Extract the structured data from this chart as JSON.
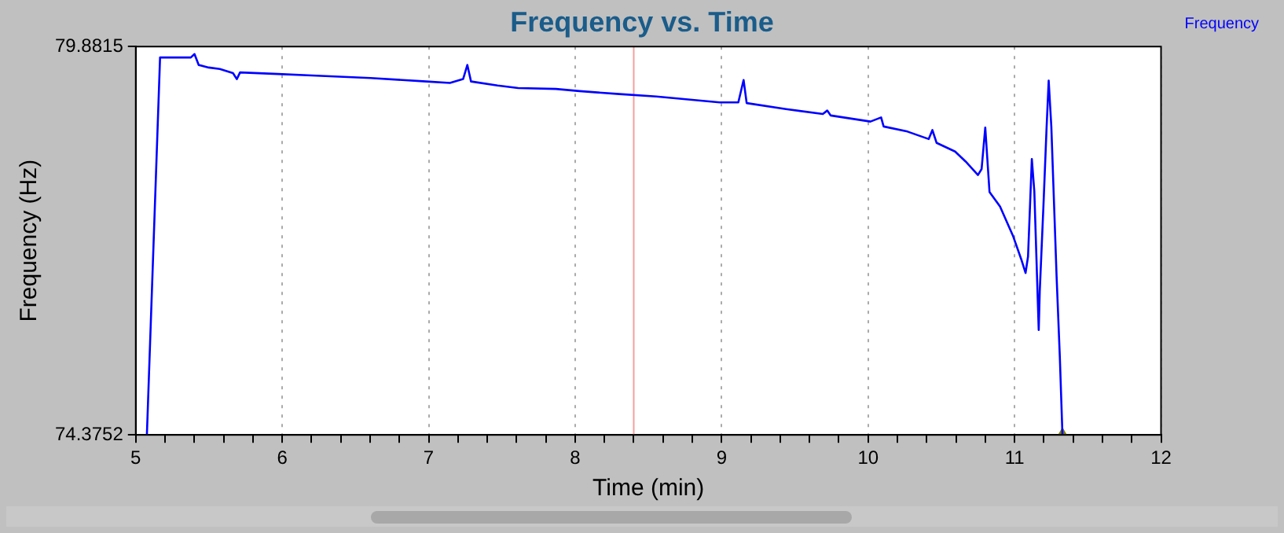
{
  "chart_data": {
    "type": "line",
    "title": "Frequency vs. Time",
    "xlabel": "Time (min)",
    "ylabel": "Frequency (Hz)",
    "xlim": [
      5,
      12
    ],
    "xticks": [
      5,
      {
        "value": 5.2,
        "label": null
      },
      {
        "value": 5.4,
        "label": null
      },
      {
        "value": 5.6,
        "label": null
      },
      {
        "value": 5.8,
        "label": null
      },
      6,
      {
        "value": 6.2,
        "label": null
      },
      {
        "value": 6.4,
        "label": null
      },
      {
        "value": 6.6,
        "label": null
      },
      {
        "value": 6.8,
        "label": null
      },
      7,
      {
        "value": 7.2,
        "label": null
      },
      {
        "value": 7.4,
        "label": null
      },
      {
        "value": 7.6,
        "label": null
      },
      {
        "value": 7.8,
        "label": null
      },
      8,
      {
        "value": 8.2,
        "label": null
      },
      {
        "value": 8.4,
        "label": null
      },
      {
        "value": 8.6,
        "label": null
      },
      {
        "value": 8.8,
        "label": null
      },
      9,
      {
        "value": 9.2,
        "label": null
      },
      {
        "value": 9.4,
        "label": null
      },
      {
        "value": 9.6,
        "label": null
      },
      {
        "value": 9.8,
        "label": null
      },
      10,
      {
        "value": 10.2,
        "label": null
      },
      {
        "value": 10.4,
        "label": null
      },
      {
        "value": 10.6,
        "label": null
      },
      {
        "value": 10.8,
        "label": null
      },
      11,
      {
        "value": 11.2,
        "label": null
      },
      {
        "value": 11.4,
        "label": null
      },
      {
        "value": 11.6,
        "label": null
      },
      {
        "value": 11.8,
        "label": null
      },
      12
    ],
    "ylim": [
      74.3752,
      79.8815
    ],
    "yticks": [
      74.3752,
      79.8815
    ],
    "grid": "x",
    "legend": "top right",
    "marker": "none",
    "line_style": "solid",
    "ref_lines": [
      {
        "axis": "x",
        "value": 8.4,
        "color": "#f4a0a0"
      }
    ],
    "series": [
      {
        "name": "Frequency",
        "color": "#0000ff",
        "x": [
          5.076,
          5.166,
          5.376,
          5.401,
          5.43,
          5.498,
          5.574,
          5.664,
          5.69,
          5.712,
          5.972,
          6.203,
          6.603,
          6.983,
          7.145,
          7.235,
          7.264,
          7.289,
          7.47,
          7.611,
          7.868,
          8.03,
          8.301,
          8.554,
          8.987,
          9.114,
          9.15,
          9.171,
          9.439,
          9.691,
          9.721,
          9.745,
          10.016,
          10.089,
          10.106,
          10.269,
          10.414,
          10.439,
          10.468,
          10.594,
          10.666,
          10.75,
          10.775,
          10.8,
          10.829,
          10.901,
          10.991,
          11.045,
          11.075,
          11.092,
          11.118,
          11.135,
          11.165,
          11.172,
          11.197,
          11.219,
          11.233,
          11.251,
          11.287,
          11.309,
          11.327
        ],
        "values": [
          74.3752,
          79.726,
          79.726,
          79.775,
          79.62,
          79.584,
          79.563,
          79.505,
          79.42,
          79.514,
          79.492,
          79.471,
          79.435,
          79.386,
          79.365,
          79.42,
          79.62,
          79.386,
          79.329,
          79.293,
          79.28,
          79.25,
          79.208,
          79.174,
          79.089,
          79.089,
          79.407,
          79.08,
          78.995,
          78.925,
          78.974,
          78.904,
          78.818,
          78.876,
          78.748,
          78.676,
          78.57,
          78.697,
          78.515,
          78.393,
          78.251,
          78.06,
          78.145,
          78.733,
          77.819,
          77.613,
          77.188,
          76.869,
          76.671,
          76.905,
          78.287,
          77.826,
          75.863,
          76.41,
          77.613,
          78.748,
          79.399,
          78.748,
          76.622,
          75.487,
          74.3752
        ]
      },
      {
        "type": "scatter",
        "marker": "triangle",
        "color": "#808000",
        "x": [
          11.327
        ],
        "values": [
          74.3752
        ]
      }
    ]
  }
}
